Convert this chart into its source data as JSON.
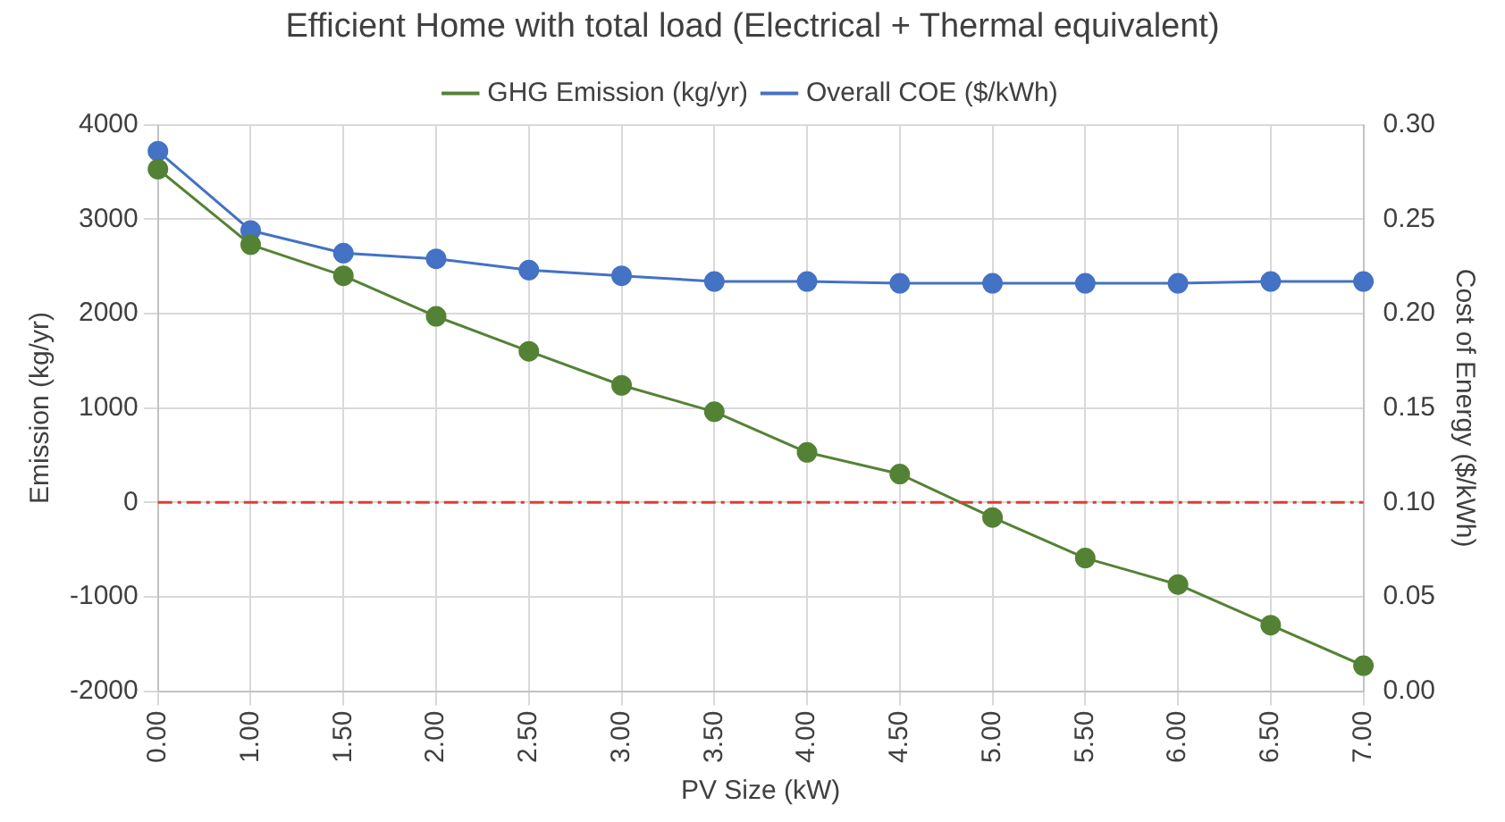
{
  "chart_data": {
    "type": "line",
    "title": "Efficient Home with total load (Electrical + Thermal equivalent)",
    "xlabel": "PV Size (kW)",
    "ylabel": "Emission (kg/yr)",
    "y2label": "Cost of Energy ($/kWh)",
    "categories": [
      "0.00",
      "1.00",
      "1.50",
      "2.00",
      "2.50",
      "3.00",
      "3.50",
      "4.00",
      "4.50",
      "5.00",
      "5.50",
      "6.00",
      "6.50",
      "7.00"
    ],
    "series": [
      {
        "name": "GHG Emission (kg/yr)",
        "color": "#548235",
        "values": [
          3530,
          2730,
          2400,
          1970,
          1600,
          1240,
          960,
          530,
          300,
          -160,
          -590,
          -870,
          -1300,
          -1730
        ]
      },
      {
        "name": "Overall COE ($/kWh)",
        "color": "#4472c4",
        "axis": "y2",
        "values": [
          0.286,
          0.244,
          0.232,
          0.229,
          0.223,
          0.22,
          0.217,
          0.217,
          0.216,
          0.216,
          0.216,
          0.216,
          0.217,
          0.217
        ]
      }
    ],
    "ylim": [
      -2000,
      4000
    ],
    "yticks": [
      -2000,
      -1000,
      0,
      1000,
      2000,
      3000,
      4000
    ],
    "y2lim": [
      0,
      0.3
    ],
    "y2ticks": [
      {
        "value": 0,
        "label": "0.00"
      },
      {
        "value": 0.05,
        "label": "0.05"
      },
      {
        "value": 0.1,
        "label": "0.10"
      },
      {
        "value": 0.15,
        "label": "0.15"
      },
      {
        "value": 0.2,
        "label": "0.20"
      },
      {
        "value": 0.25,
        "label": "0.25"
      },
      {
        "value": 0.3,
        "label": "0.30"
      }
    ],
    "ref_lines": [
      {
        "axis": "y",
        "value": 0,
        "color": "#e03c31",
        "line_style": "dashdot"
      }
    ],
    "grid": true,
    "legend": "top",
    "marker": "circle",
    "line_style": "solid"
  }
}
